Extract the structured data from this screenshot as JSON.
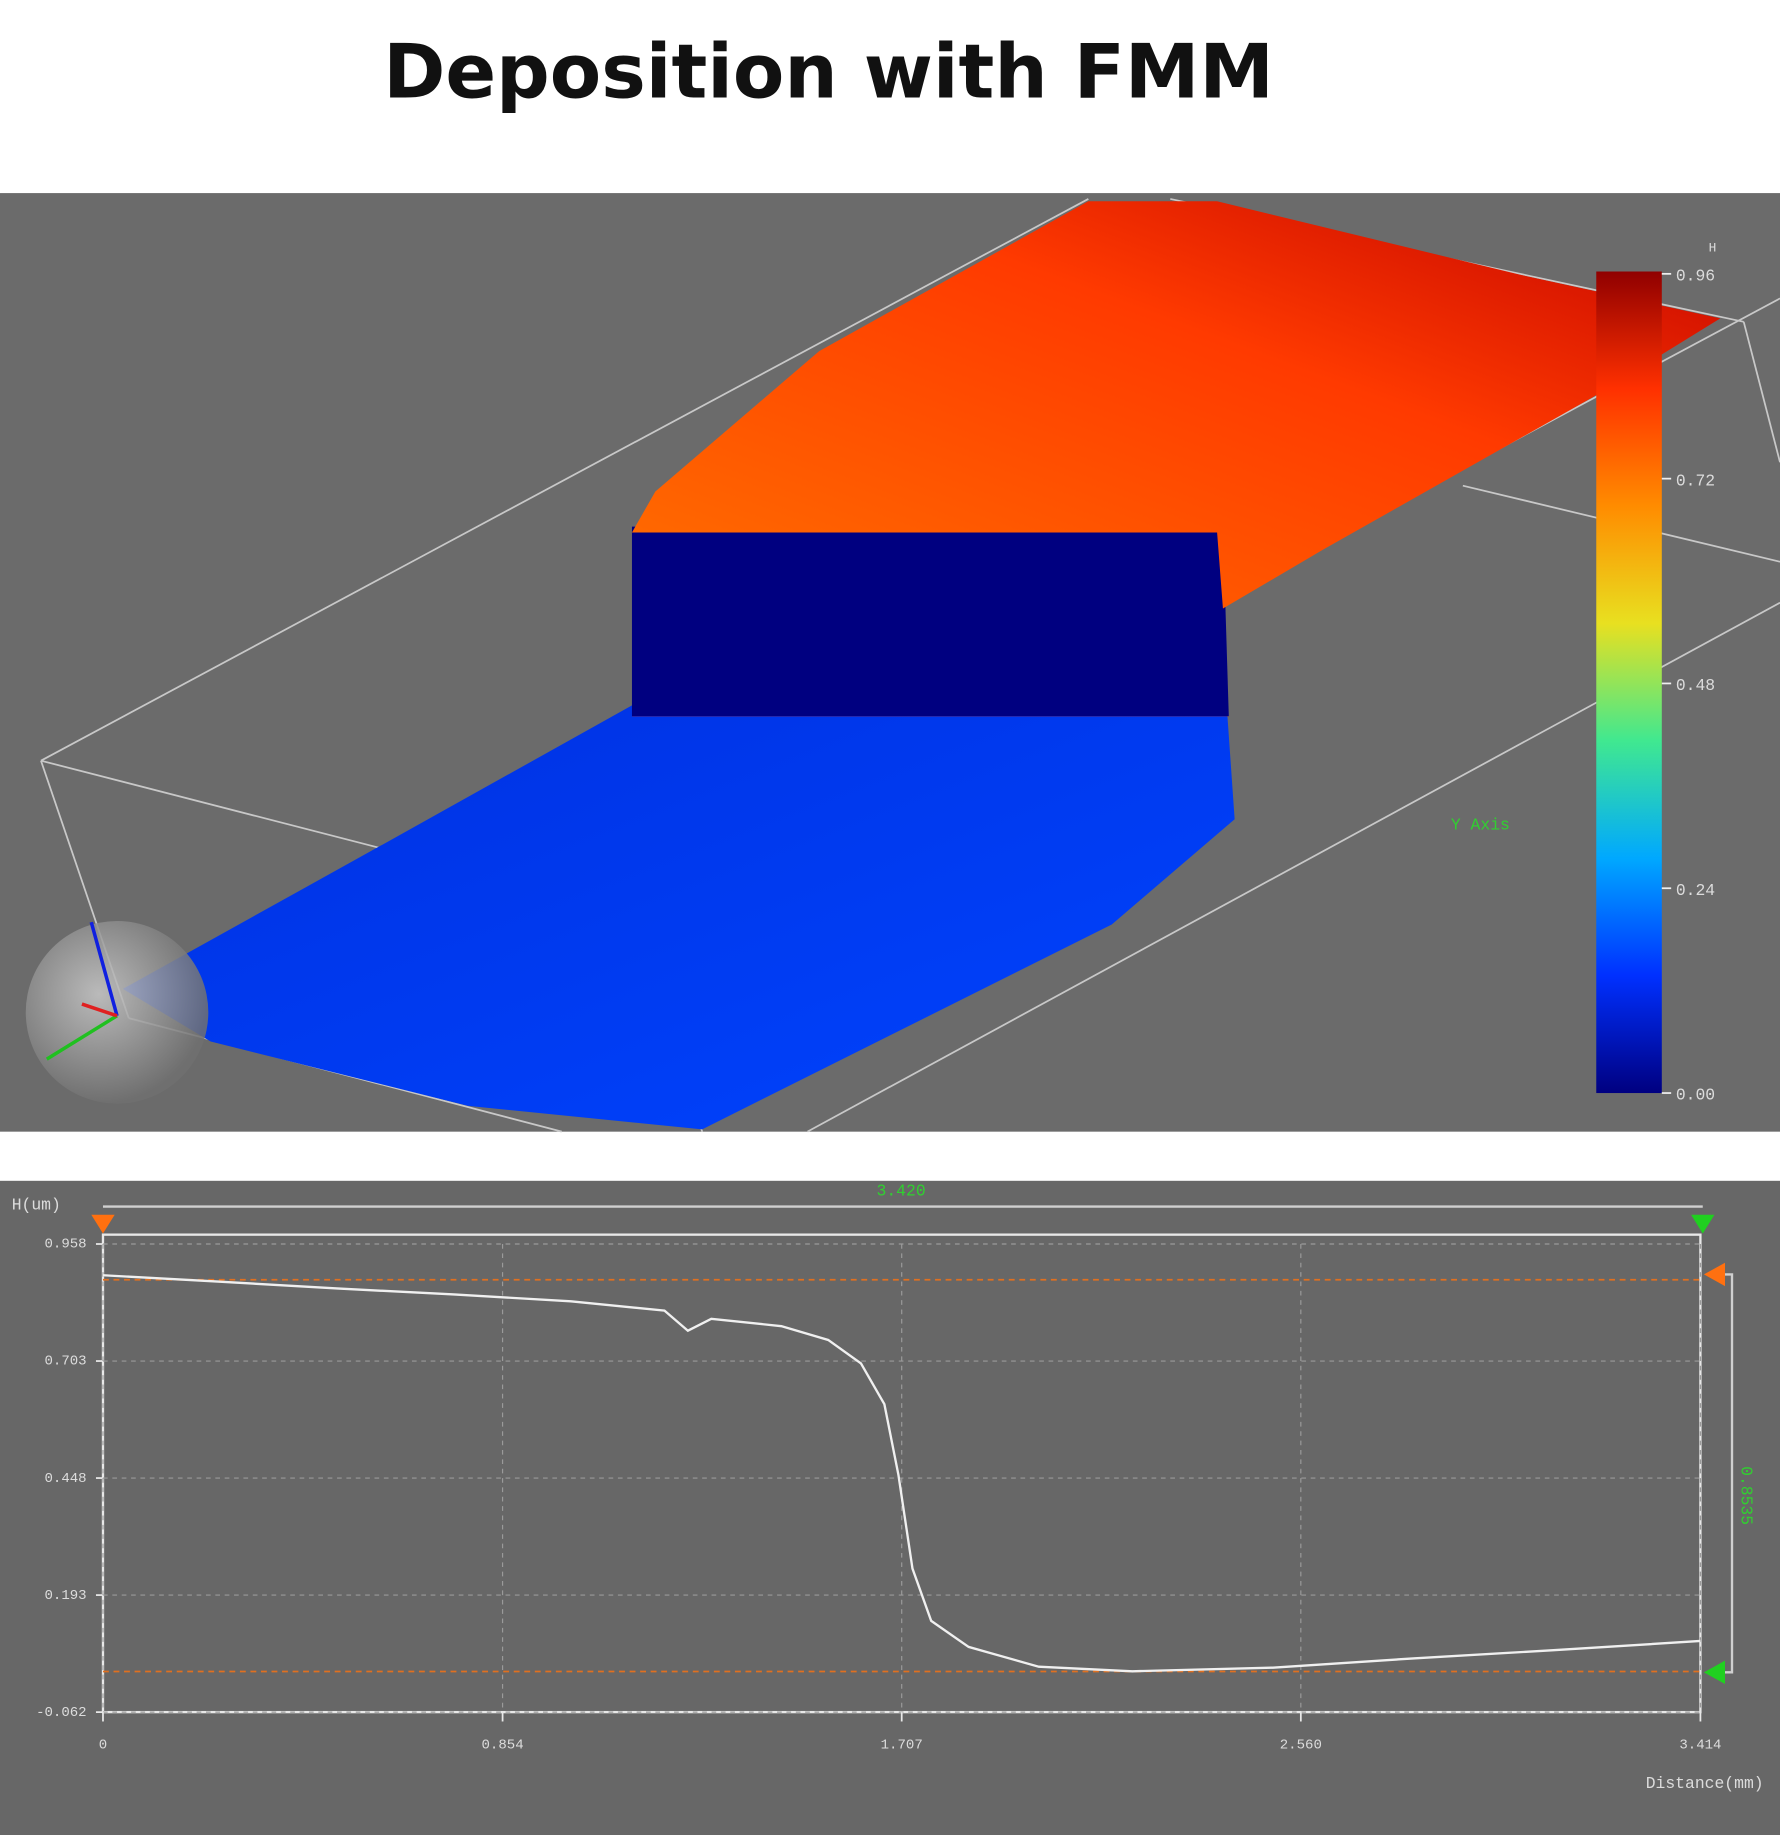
{
  "title": "Deposition with FMM",
  "chart_data": [
    {
      "type": "surface",
      "colorbar_label": "H",
      "axis_label": "Y Axis",
      "clim": [
        0,
        0.96
      ],
      "colorbar_ticks": [
        {
          "value": 0,
          "label": "0.00"
        },
        {
          "value": 0.24,
          "label": "0.24"
        },
        {
          "value": 0.48,
          "label": "0.48"
        },
        {
          "value": 0.72,
          "label": "0.72"
        },
        {
          "value": 0.96,
          "label": "0.96"
        }
      ],
      "colorscale": [
        "#000080",
        "#0030ff",
        "#00a8ff",
        "#40e890",
        "#e8e020",
        "#ff8c00",
        "#ff3000",
        "#900000"
      ]
    },
    {
      "type": "line",
      "ylabel": "H(um)",
      "xlabel": "Distance(mm)",
      "x": [
        0,
        0.25,
        0.5,
        0.75,
        1.0,
        1.2,
        1.25,
        1.3,
        1.45,
        1.55,
        1.62,
        1.67,
        1.7,
        1.73,
        1.77,
        1.85,
        2.0,
        2.2,
        2.5,
        2.8,
        3.1,
        3.414
      ],
      "values": [
        0.89,
        0.876,
        0.861,
        0.848,
        0.833,
        0.813,
        0.769,
        0.795,
        0.779,
        0.749,
        0.698,
        0.609,
        0.455,
        0.251,
        0.137,
        0.08,
        0.037,
        0.027,
        0.035,
        0.055,
        0.073,
        0.093
      ],
      "color": "#f0f0f0",
      "xlim": [
        0,
        3.414
      ],
      "ylim": [
        -0.062,
        0.958
      ],
      "xticks": [
        0,
        0.854,
        1.707,
        {
          "value": 2.56,
          "label": "2.560"
        },
        3.414
      ],
      "yticks": [
        -0.062,
        0.193,
        0.448,
        0.703,
        0.958
      ],
      "grid": true,
      "reference_lines": [
        0.88,
        0.0265
      ],
      "reference_color": "#e07020",
      "annotations": [
        "3.420",
        "0.8535"
      ]
    }
  ]
}
